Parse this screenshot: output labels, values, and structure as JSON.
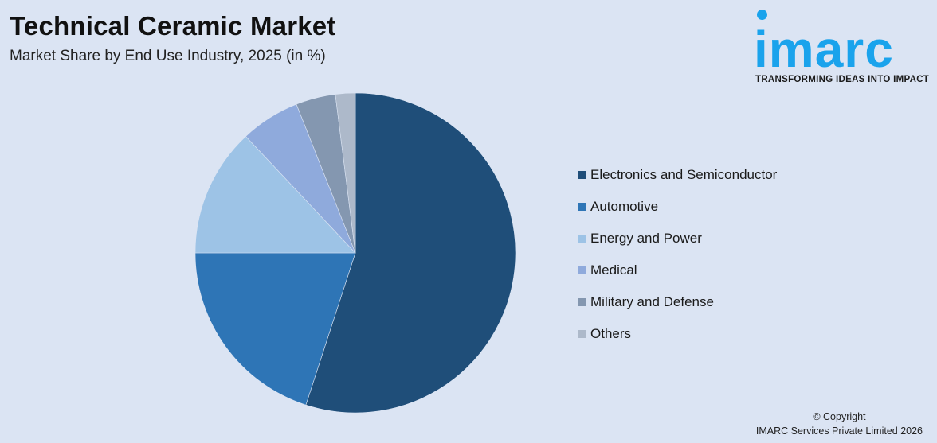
{
  "header": {
    "title": "Technical Ceramic Market",
    "subtitle": "Market Share by End Use Industry, 2025 (in %)"
  },
  "logo": {
    "word": "imarc",
    "tagline": "TRANSFORMING IDEAS INTO IMPACT",
    "color": "#1aa3ec"
  },
  "footer": {
    "line1": "© Copyright",
    "line2": "IMARC Services Private Limited 2026"
  },
  "legend": {
    "items": [
      {
        "label": "Electronics and Semiconductor",
        "color": "#1f4e79"
      },
      {
        "label": "Automotive",
        "color": "#2e75b6"
      },
      {
        "label": "Energy and Power",
        "color": "#9dc3e6"
      },
      {
        "label": "Medical",
        "color": "#8faadc"
      },
      {
        "label": "Military and Defense",
        "color": "#8497b0"
      },
      {
        "label": "Others",
        "color": "#adb9ca"
      }
    ]
  },
  "chart_data": {
    "type": "pie",
    "title": "Technical Ceramic Market",
    "subtitle": "Market Share by End Use Industry, 2025 (in %)",
    "categories": [
      "Electronics and Semiconductor",
      "Automotive",
      "Energy and Power",
      "Medical",
      "Military and Defense",
      "Others"
    ],
    "values": [
      55,
      20,
      13,
      6,
      4,
      2
    ],
    "colors": [
      "#1f4e79",
      "#2e75b6",
      "#9dc3e6",
      "#8faadc",
      "#8497b0",
      "#adb9ca"
    ],
    "start_angle": "12 o'clock",
    "direction": "clockwise",
    "legend_position": "right",
    "data_labels": false
  }
}
